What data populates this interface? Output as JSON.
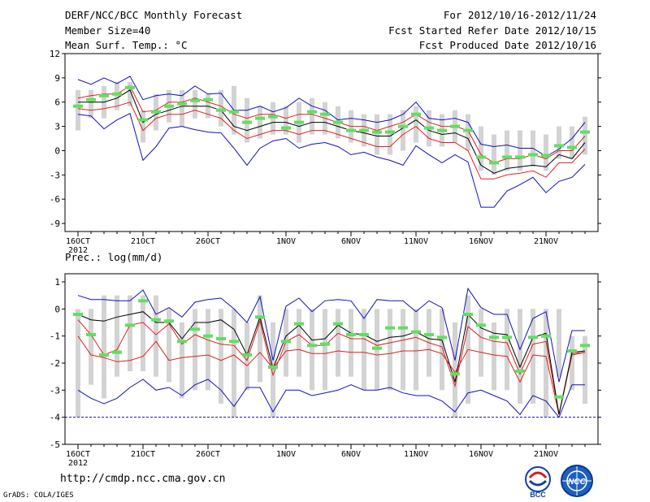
{
  "header": {
    "title": "DERF/NCC/BCC Monthly Forecast",
    "member_size": "Member Size=40",
    "variable": "Mean Surf. Temp.: °C",
    "forecast_for": "For 2012/10/16-2012/11/24",
    "started": "Fcst Started Refer Date 2012/10/15",
    "produced": "Fcst Produced Date 2012/10/16"
  },
  "footer": {
    "url": "http://cmdp.ncc.cma.gov.cn",
    "grads": "GrADS: COLA/IGES",
    "logo_left": "BCC",
    "logo_right": "NCC"
  },
  "colors": {
    "box": "#d3d3d3",
    "ens_mean": "#000000",
    "spread": "#e02020",
    "extreme": "#1010c0",
    "member_median": "#60e060",
    "floor": "#1010c0"
  },
  "chart_data": [
    {
      "type": "line",
      "title": "Mean Surf. Temp.: °C",
      "ylim": [
        -10,
        12
      ],
      "yticks": [
        -9,
        -6,
        -3,
        0,
        3,
        6,
        9,
        12
      ],
      "x": [
        1,
        2,
        3,
        4,
        5,
        6,
        7,
        8,
        9,
        10,
        11,
        12,
        13,
        14,
        15,
        16,
        17,
        18,
        19,
        20,
        21,
        22,
        23,
        24,
        25,
        26,
        27,
        28,
        29,
        30,
        31,
        32,
        33,
        34,
        35,
        36,
        37,
        38,
        39,
        40
      ],
      "xlim": [
        0,
        41
      ],
      "xticks": [
        {
          "x": 1,
          "label": "16OCT"
        },
        {
          "x": 6,
          "label": "21OCT"
        },
        {
          "x": 11,
          "label": "26OCT"
        },
        {
          "x": 17,
          "label": "1NOV"
        },
        {
          "x": 22,
          "label": "6NOV"
        },
        {
          "x": 27,
          "label": "11NOV"
        },
        {
          "x": 32,
          "label": "16NOV"
        },
        {
          "x": 37,
          "label": "21NOV"
        }
      ],
      "year_label": "2012",
      "series": [
        {
          "name": "box_top",
          "values": [
            7.5,
            7.5,
            8,
            8.5,
            8.5,
            5,
            7,
            7.5,
            7.5,
            7.5,
            7,
            7.5,
            8,
            6.5,
            5.5,
            6,
            5.5,
            6,
            6.5,
            6,
            5.5,
            5,
            4.5,
            4.5,
            4.5,
            5,
            5.5,
            5,
            4.5,
            5,
            4.5,
            3,
            2,
            2.5,
            2.5,
            2.5,
            2,
            3,
            3,
            4.2
          ]
        },
        {
          "name": "box_bottom",
          "values": [
            2.5,
            4,
            4,
            5,
            5.5,
            1,
            2.5,
            3.5,
            3,
            4,
            4,
            3,
            2,
            1,
            1.5,
            2,
            2,
            1,
            2,
            2,
            1.5,
            1,
            0.5,
            -0.5,
            -0.5,
            0,
            1,
            0.5,
            0.5,
            1,
            0,
            -2.5,
            -3,
            -2.5,
            -2.5,
            -2,
            -2.5,
            -1,
            -1,
            -0.5
          ]
        },
        {
          "name": "ens_max",
          "values": [
            8.8,
            8.2,
            9,
            8.3,
            9.2,
            6.3,
            6.8,
            7,
            6.8,
            8,
            7,
            7.1,
            5,
            5,
            5.5,
            4.8,
            5.3,
            6.5,
            5.5,
            5,
            3.8,
            4,
            3.8,
            3.5,
            3.8,
            4.5,
            6,
            4,
            3.8,
            4,
            3.5,
            0.8,
            0.5,
            0.7,
            0.3,
            0.3,
            -0.7,
            0.2,
            1.5,
            3.5
          ]
        },
        {
          "name": "spread_upper",
          "values": [
            6.5,
            6.8,
            7,
            7,
            8,
            4.8,
            5,
            6,
            6,
            6.5,
            6,
            5.5,
            4.5,
            4,
            4.5,
            4.5,
            4,
            4.5,
            4.5,
            4,
            3.5,
            3,
            3,
            2.5,
            3,
            3.5,
            4.5,
            3.5,
            3,
            3,
            2.5,
            -0.5,
            -1.5,
            -1,
            -1,
            -0.5,
            -1,
            0,
            0,
            1.8
          ]
        },
        {
          "name": "ens_mean",
          "values": [
            6,
            6,
            6,
            6.5,
            7.5,
            3.5,
            4.5,
            5,
            5.5,
            5.5,
            5.5,
            5,
            3,
            2.5,
            3,
            3.5,
            3.5,
            3,
            3.5,
            3.5,
            3,
            2.5,
            2.2,
            1.8,
            1.8,
            2.8,
            3.8,
            2.5,
            2,
            2.2,
            1.5,
            -1.8,
            -2.8,
            -2.2,
            -2,
            -1.8,
            -2,
            -0.5,
            -1,
            1
          ]
        },
        {
          "name": "spread_lower",
          "values": [
            5.2,
            5,
            5.2,
            5.5,
            6,
            2.5,
            4,
            4.5,
            4.5,
            5,
            4.5,
            4,
            2.5,
            1.5,
            2,
            2.5,
            2.5,
            2,
            2.5,
            2.5,
            2,
            1.5,
            1,
            0.5,
            0.5,
            2,
            3,
            1.5,
            1,
            1,
            0,
            -3.5,
            -3.5,
            -3,
            -2.8,
            -2.5,
            -3.3,
            -1.5,
            -1.5,
            0.2
          ]
        },
        {
          "name": "ens_min",
          "values": [
            4.5,
            4.3,
            2.7,
            3.8,
            4.6,
            -1.2,
            0.5,
            2.8,
            3,
            2.6,
            2.3,
            2.2,
            0.3,
            -1.8,
            0.3,
            1.2,
            1.5,
            0.3,
            0.8,
            1,
            0.5,
            -0.5,
            -0.2,
            -0.8,
            -1.2,
            -1.8,
            0.6,
            -0.5,
            -1.5,
            -0.5,
            -1.4,
            -7,
            -7,
            -5,
            -4.2,
            -3.3,
            -5.2,
            -3.8,
            -3.3,
            -1.7
          ]
        },
        {
          "name": "member_median",
          "values": [
            5.5,
            6.3,
            6.8,
            7,
            7.8,
            3.8,
            4.8,
            5.5,
            5.8,
            6.2,
            6.3,
            5,
            4.8,
            3.5,
            4,
            4.2,
            2.8,
            3.5,
            4.8,
            4.5,
            3.5,
            2.5,
            2.5,
            2.3,
            2.3,
            3,
            4.5,
            2.8,
            2.5,
            3,
            2.5,
            -0.8,
            -1.5,
            -0.8,
            -0.8,
            -0.5,
            -0.6,
            0.6,
            0.4,
            2.3
          ]
        }
      ]
    },
    {
      "type": "line",
      "title": "Prec.: log(mm/d)",
      "ylim": [
        -5,
        1.3
      ],
      "yticks": [
        -5,
        -4,
        -3,
        -2,
        -1,
        0,
        1
      ],
      "x": [
        1,
        2,
        3,
        4,
        5,
        6,
        7,
        8,
        9,
        10,
        11,
        12,
        13,
        14,
        15,
        16,
        17,
        18,
        19,
        20,
        21,
        22,
        23,
        24,
        25,
        26,
        27,
        28,
        29,
        30,
        31,
        32,
        33,
        34,
        35,
        36,
        37,
        38,
        39,
        40
      ],
      "xlim": [
        0,
        41
      ],
      "xticks": [
        {
          "x": 1,
          "label": "16OCT"
        },
        {
          "x": 6,
          "label": "21OCT"
        },
        {
          "x": 11,
          "label": "26OCT"
        },
        {
          "x": 17,
          "label": "1NOV"
        },
        {
          "x": 22,
          "label": "6NOV"
        },
        {
          "x": 27,
          "label": "11NOV"
        },
        {
          "x": 32,
          "label": "16NOV"
        },
        {
          "x": 37,
          "label": "21NOV"
        }
      ],
      "year_label": "2012",
      "floor": -4,
      "series": [
        {
          "name": "box_top",
          "values": [
            0,
            0,
            0.5,
            0.5,
            0.5,
            0.5,
            0.5,
            0,
            -0.5,
            0,
            0,
            0,
            0,
            -0.5,
            0.5,
            -0.5,
            0,
            0,
            0,
            0,
            0,
            0,
            0,
            0,
            0,
            0,
            0,
            0,
            0,
            -0.5,
            0.5,
            0,
            -0.5,
            0,
            0,
            0,
            0,
            0,
            -1,
            -1
          ]
        },
        {
          "name": "box_bottom",
          "values": [
            -4,
            -2.8,
            -3.3,
            -2.5,
            -2.3,
            -2.3,
            -2.5,
            -2.7,
            -3.3,
            -3,
            -3,
            -3.5,
            -4,
            -3,
            -2.7,
            -4,
            -2.5,
            -2.5,
            -3,
            -3,
            -2.5,
            -2.5,
            -3,
            -3,
            -3,
            -3,
            -3,
            -2.5,
            -3,
            -4,
            -3.5,
            -2.5,
            -3,
            -3,
            -3.5,
            -3.5,
            -4,
            -2.5,
            -3,
            -3.5
          ]
        },
        {
          "name": "ens_max",
          "values": [
            0.5,
            0.35,
            0.35,
            0.3,
            0.3,
            0.7,
            -0.2,
            0.05,
            -0.3,
            0.25,
            0.35,
            0.4,
            0,
            -0.5,
            0.45,
            -1.9,
            0.1,
            0.4,
            -0.1,
            0.3,
            0.35,
            0.3,
            -0.35,
            0.35,
            0.3,
            0.3,
            -0.1,
            0.3,
            0.05,
            -1.9,
            0.75,
            0.05,
            -0.2,
            -0.2,
            -1.5,
            -0.35,
            -0.1,
            -2.7,
            -0.8,
            -0.8
          ]
        },
        {
          "name": "ens_mean",
          "values": [
            -0.2,
            -0.4,
            -0.45,
            -0.3,
            -0.2,
            -0.1,
            -0.5,
            -0.5,
            -1.1,
            -0.5,
            -0.5,
            -0.4,
            -0.75,
            -1.7,
            -0.3,
            -2.2,
            -1,
            -0.6,
            -1.15,
            -1.1,
            -0.6,
            -0.9,
            -0.95,
            -1.2,
            -1.05,
            -1,
            -0.85,
            -1.1,
            -1.15,
            -2.7,
            -0.2,
            -0.7,
            -0.9,
            -0.95,
            -2.15,
            -1.05,
            -0.9,
            -3.9,
            -1.6,
            -1.55
          ]
        },
        {
          "name": "spread_upper",
          "values": [
            -0.4,
            -0.95,
            -1.7,
            -1.5,
            -0.6,
            -0.5,
            -0.95,
            -0.55,
            -1.3,
            -0.95,
            -1.15,
            -1.3,
            -1.35,
            -1.9,
            -0.45,
            -2.45,
            -1.2,
            -0.95,
            -1.35,
            -1.35,
            -0.9,
            -1.1,
            -1.1,
            -1.35,
            -1.25,
            -1.15,
            -1.05,
            -1.25,
            -1.4,
            -2.85,
            -0.65,
            -1.05,
            -1.2,
            -1.25,
            -2.4,
            -1.3,
            -1.2,
            -3.9,
            -1.65,
            -1.6
          ]
        },
        {
          "name": "spread_lower",
          "values": [
            -1,
            -1.7,
            -1.8,
            -1.95,
            -1.9,
            -1.75,
            -1.2,
            -1.9,
            -1.8,
            -1.75,
            -1.7,
            -1.9,
            -1.7,
            -2.1,
            -1.6,
            -2.2,
            -1.55,
            -1.5,
            -1.65,
            -1.65,
            -1.55,
            -1.6,
            -1.6,
            -1.7,
            -1.65,
            -1.55,
            -1.55,
            -1.5,
            -1.65,
            -2.35,
            -1.5,
            -1.6,
            -1.7,
            -1.75,
            -2.7,
            -1.7,
            -1.75,
            -3.9,
            -1.7,
            -1.6
          ]
        },
        {
          "name": "ens_min",
          "values": [
            -3,
            -3.3,
            -3.5,
            -3.3,
            -2.9,
            -2.6,
            -3,
            -2.9,
            -3.2,
            -2.8,
            -2.6,
            -3,
            -3.6,
            -2.9,
            -2.9,
            -3.8,
            -3,
            -3,
            -3.2,
            -3.1,
            -3,
            -2.8,
            -3,
            -3,
            -2.9,
            -3.1,
            -3.2,
            -3.2,
            -3.4,
            -3.8,
            -3.1,
            -3,
            -3.2,
            -3.4,
            -3.9,
            -3.2,
            -3.4,
            -4,
            -2.8,
            -2.8
          ]
        },
        {
          "name": "member_median",
          "values": [
            -0.2,
            -0.95,
            -1.7,
            -1.6,
            -0.6,
            0.3,
            -0.4,
            -0.45,
            -1.2,
            -0.75,
            -1,
            -1.1,
            -1.2,
            -1.7,
            -0.3,
            -2.15,
            -1.2,
            -0.55,
            -1.35,
            -1.3,
            -0.55,
            -0.95,
            -0.95,
            -1.45,
            -0.7,
            -0.7,
            -0.85,
            -0.95,
            -1.05,
            -2.4,
            -0.2,
            -0.6,
            -1.05,
            -1.05,
            -2.3,
            -1.05,
            -1,
            -3.25,
            -1.55,
            -1.35
          ]
        }
      ]
    }
  ]
}
